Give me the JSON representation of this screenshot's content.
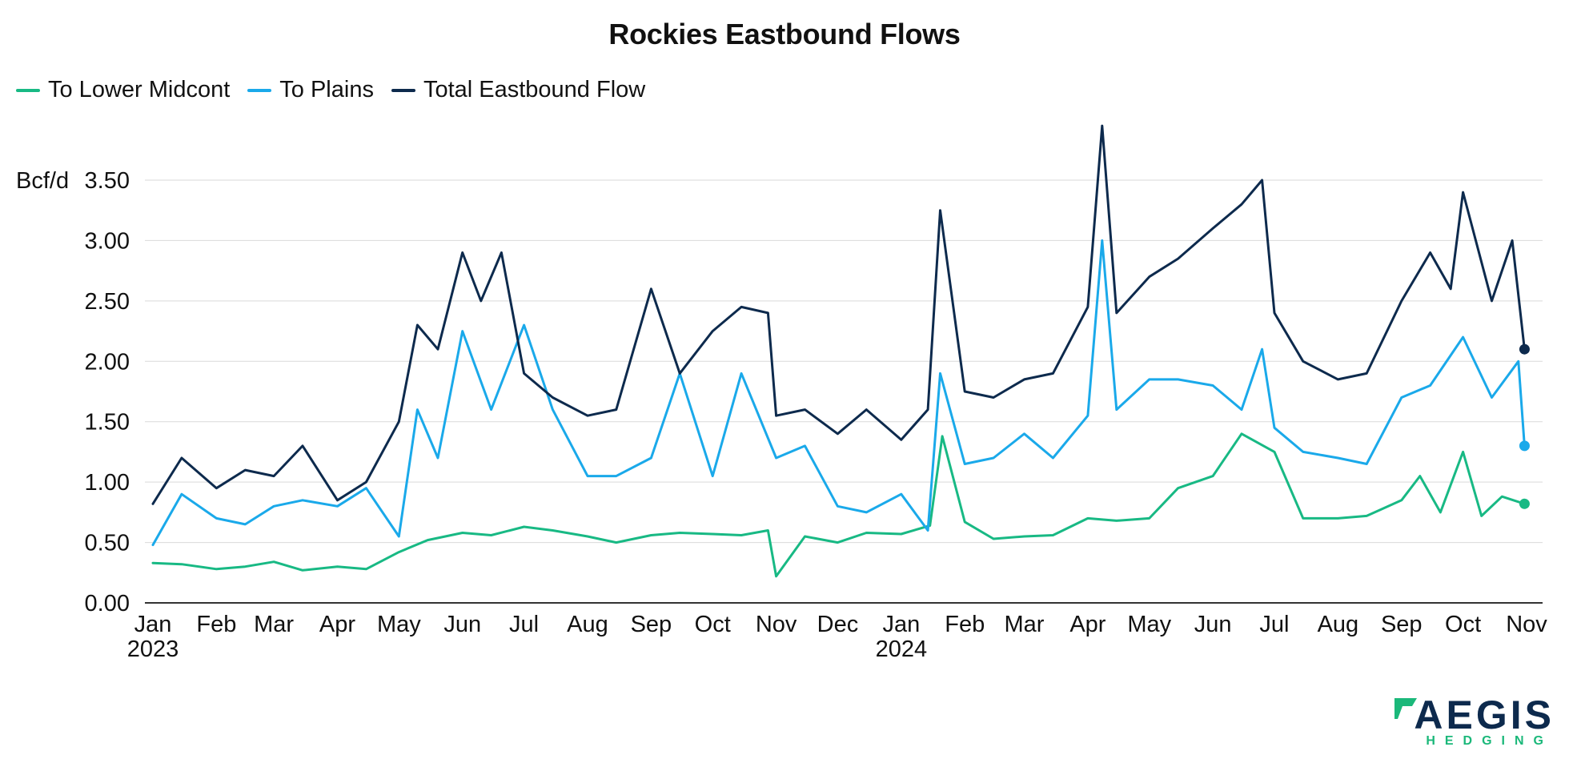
{
  "chart_data": {
    "type": "line",
    "title": "Rockies Eastbound Flows",
    "ylabel": "Bcf/d",
    "ylim": [
      0,
      3.5
    ],
    "yticks": [
      "0.00",
      "0.50",
      "1.00",
      "1.50",
      "2.00",
      "2.50",
      "3.00",
      "3.50"
    ],
    "xlim": [
      "2023-01-01",
      "2024-11-01"
    ],
    "xticks": [
      {
        "date": "2023-01-01",
        "label": "Jan",
        "year": "2023"
      },
      {
        "date": "2023-02-01",
        "label": "Feb"
      },
      {
        "date": "2023-03-01",
        "label": "Mar"
      },
      {
        "date": "2023-04-01",
        "label": "Apr"
      },
      {
        "date": "2023-05-01",
        "label": "May"
      },
      {
        "date": "2023-06-01",
        "label": "Jun"
      },
      {
        "date": "2023-07-01",
        "label": "Jul"
      },
      {
        "date": "2023-08-01",
        "label": "Aug"
      },
      {
        "date": "2023-09-01",
        "label": "Sep"
      },
      {
        "date": "2023-10-01",
        "label": "Oct"
      },
      {
        "date": "2023-11-01",
        "label": "Nov"
      },
      {
        "date": "2023-12-01",
        "label": "Dec"
      },
      {
        "date": "2024-01-01",
        "label": "Jan",
        "year": "2024"
      },
      {
        "date": "2024-02-01",
        "label": "Feb"
      },
      {
        "date": "2024-03-01",
        "label": "Mar"
      },
      {
        "date": "2024-04-01",
        "label": "Apr"
      },
      {
        "date": "2024-05-01",
        "label": "May"
      },
      {
        "date": "2024-06-01",
        "label": "Jun"
      },
      {
        "date": "2024-07-01",
        "label": "Jul"
      },
      {
        "date": "2024-08-01",
        "label": "Aug"
      },
      {
        "date": "2024-09-01",
        "label": "Sep"
      },
      {
        "date": "2024-10-01",
        "label": "Oct"
      },
      {
        "date": "2024-11-01",
        "label": "Nov"
      }
    ],
    "grid": true,
    "legend": "top-left",
    "series": [
      {
        "name": "To Lower Midcont",
        "color": "#18b984",
        "end_marker": true,
        "x": [
          "2023-01-01",
          "2023-01-15",
          "2023-02-01",
          "2023-02-15",
          "2023-03-01",
          "2023-03-15",
          "2023-04-01",
          "2023-04-15",
          "2023-05-01",
          "2023-05-15",
          "2023-06-01",
          "2023-06-15",
          "2023-07-01",
          "2023-07-15",
          "2023-08-01",
          "2023-08-15",
          "2023-09-01",
          "2023-09-15",
          "2023-10-01",
          "2023-10-15",
          "2023-10-28",
          "2023-11-01",
          "2023-11-15",
          "2023-12-01",
          "2023-12-15",
          "2024-01-01",
          "2024-01-15",
          "2024-01-21",
          "2024-02-01",
          "2024-02-15",
          "2024-03-01",
          "2024-03-15",
          "2024-04-01",
          "2024-04-15",
          "2024-05-01",
          "2024-05-15",
          "2024-06-01",
          "2024-06-15",
          "2024-07-01",
          "2024-07-15",
          "2024-08-01",
          "2024-08-15",
          "2024-09-01",
          "2024-09-10",
          "2024-09-20",
          "2024-10-01",
          "2024-10-10",
          "2024-10-20",
          "2024-10-31"
        ],
        "y": [
          0.33,
          0.32,
          0.28,
          0.3,
          0.34,
          0.27,
          0.3,
          0.28,
          0.42,
          0.52,
          0.58,
          0.56,
          0.63,
          0.6,
          0.55,
          0.5,
          0.56,
          0.58,
          0.57,
          0.56,
          0.6,
          0.22,
          0.55,
          0.5,
          0.58,
          0.57,
          0.64,
          1.38,
          0.67,
          0.53,
          0.55,
          0.56,
          0.7,
          0.68,
          0.7,
          0.95,
          1.05,
          1.4,
          1.25,
          0.7,
          0.7,
          0.72,
          0.85,
          1.05,
          0.75,
          1.25,
          0.72,
          0.88,
          0.82
        ]
      },
      {
        "name": "To Plains",
        "color": "#1aa9ea",
        "end_marker": true,
        "x": [
          "2023-01-01",
          "2023-01-15",
          "2023-02-01",
          "2023-02-15",
          "2023-03-01",
          "2023-03-15",
          "2023-04-01",
          "2023-04-15",
          "2023-05-01",
          "2023-05-10",
          "2023-05-20",
          "2023-06-01",
          "2023-06-15",
          "2023-07-01",
          "2023-07-15",
          "2023-08-01",
          "2023-08-15",
          "2023-09-01",
          "2023-09-15",
          "2023-10-01",
          "2023-10-15",
          "2023-11-01",
          "2023-11-15",
          "2023-12-01",
          "2023-12-15",
          "2024-01-01",
          "2024-01-14",
          "2024-01-20",
          "2024-02-01",
          "2024-02-15",
          "2024-03-01",
          "2024-03-15",
          "2024-04-01",
          "2024-04-08",
          "2024-04-15",
          "2024-05-01",
          "2024-05-15",
          "2024-06-01",
          "2024-06-15",
          "2024-06-25",
          "2024-07-01",
          "2024-07-15",
          "2024-08-01",
          "2024-08-15",
          "2024-09-01",
          "2024-09-15",
          "2024-10-01",
          "2024-10-15",
          "2024-10-28",
          "2024-10-31"
        ],
        "y": [
          0.48,
          0.9,
          0.7,
          0.65,
          0.8,
          0.85,
          0.8,
          0.95,
          0.55,
          1.6,
          1.2,
          2.25,
          1.6,
          2.3,
          1.6,
          1.05,
          1.05,
          1.2,
          1.9,
          1.05,
          1.9,
          1.2,
          1.3,
          0.8,
          0.75,
          0.9,
          0.6,
          1.9,
          1.15,
          1.2,
          1.4,
          1.2,
          1.55,
          3.0,
          1.6,
          1.85,
          1.85,
          1.8,
          1.6,
          2.1,
          1.45,
          1.25,
          1.2,
          1.15,
          1.7,
          1.8,
          2.2,
          1.7,
          2.0,
          1.3
        ]
      },
      {
        "name": "Total Eastbound Flow",
        "color": "#0d2a4d",
        "end_marker": true,
        "x": [
          "2023-01-01",
          "2023-01-15",
          "2023-02-01",
          "2023-02-15",
          "2023-03-01",
          "2023-03-15",
          "2023-04-01",
          "2023-04-15",
          "2023-05-01",
          "2023-05-10",
          "2023-05-20",
          "2023-06-01",
          "2023-06-10",
          "2023-06-20",
          "2023-07-01",
          "2023-07-15",
          "2023-08-01",
          "2023-08-15",
          "2023-09-01",
          "2023-09-15",
          "2023-10-01",
          "2023-10-15",
          "2023-10-28",
          "2023-11-01",
          "2023-11-15",
          "2023-12-01",
          "2023-12-15",
          "2024-01-01",
          "2024-01-14",
          "2024-01-20",
          "2024-02-01",
          "2024-02-15",
          "2024-03-01",
          "2024-03-15",
          "2024-04-01",
          "2024-04-08",
          "2024-04-15",
          "2024-05-01",
          "2024-05-15",
          "2024-06-01",
          "2024-06-15",
          "2024-06-25",
          "2024-07-01",
          "2024-07-15",
          "2024-08-01",
          "2024-08-15",
          "2024-09-01",
          "2024-09-15",
          "2024-09-25",
          "2024-10-01",
          "2024-10-15",
          "2024-10-25",
          "2024-10-31"
        ],
        "y": [
          0.82,
          1.2,
          0.95,
          1.1,
          1.05,
          1.3,
          0.85,
          1.0,
          1.5,
          2.3,
          2.1,
          2.9,
          2.5,
          2.9,
          1.9,
          1.7,
          1.55,
          1.6,
          2.6,
          1.9,
          2.25,
          2.45,
          2.4,
          1.55,
          1.6,
          1.4,
          1.6,
          1.35,
          1.6,
          3.25,
          1.75,
          1.7,
          1.85,
          1.9,
          2.45,
          3.95,
          2.4,
          2.7,
          2.85,
          3.1,
          3.3,
          3.5,
          2.4,
          2.0,
          1.85,
          1.9,
          2.5,
          2.9,
          2.6,
          3.4,
          2.5,
          3.0,
          2.1
        ]
      }
    ]
  },
  "logo": {
    "main": "AEGIS",
    "sub": "HEDGING"
  }
}
